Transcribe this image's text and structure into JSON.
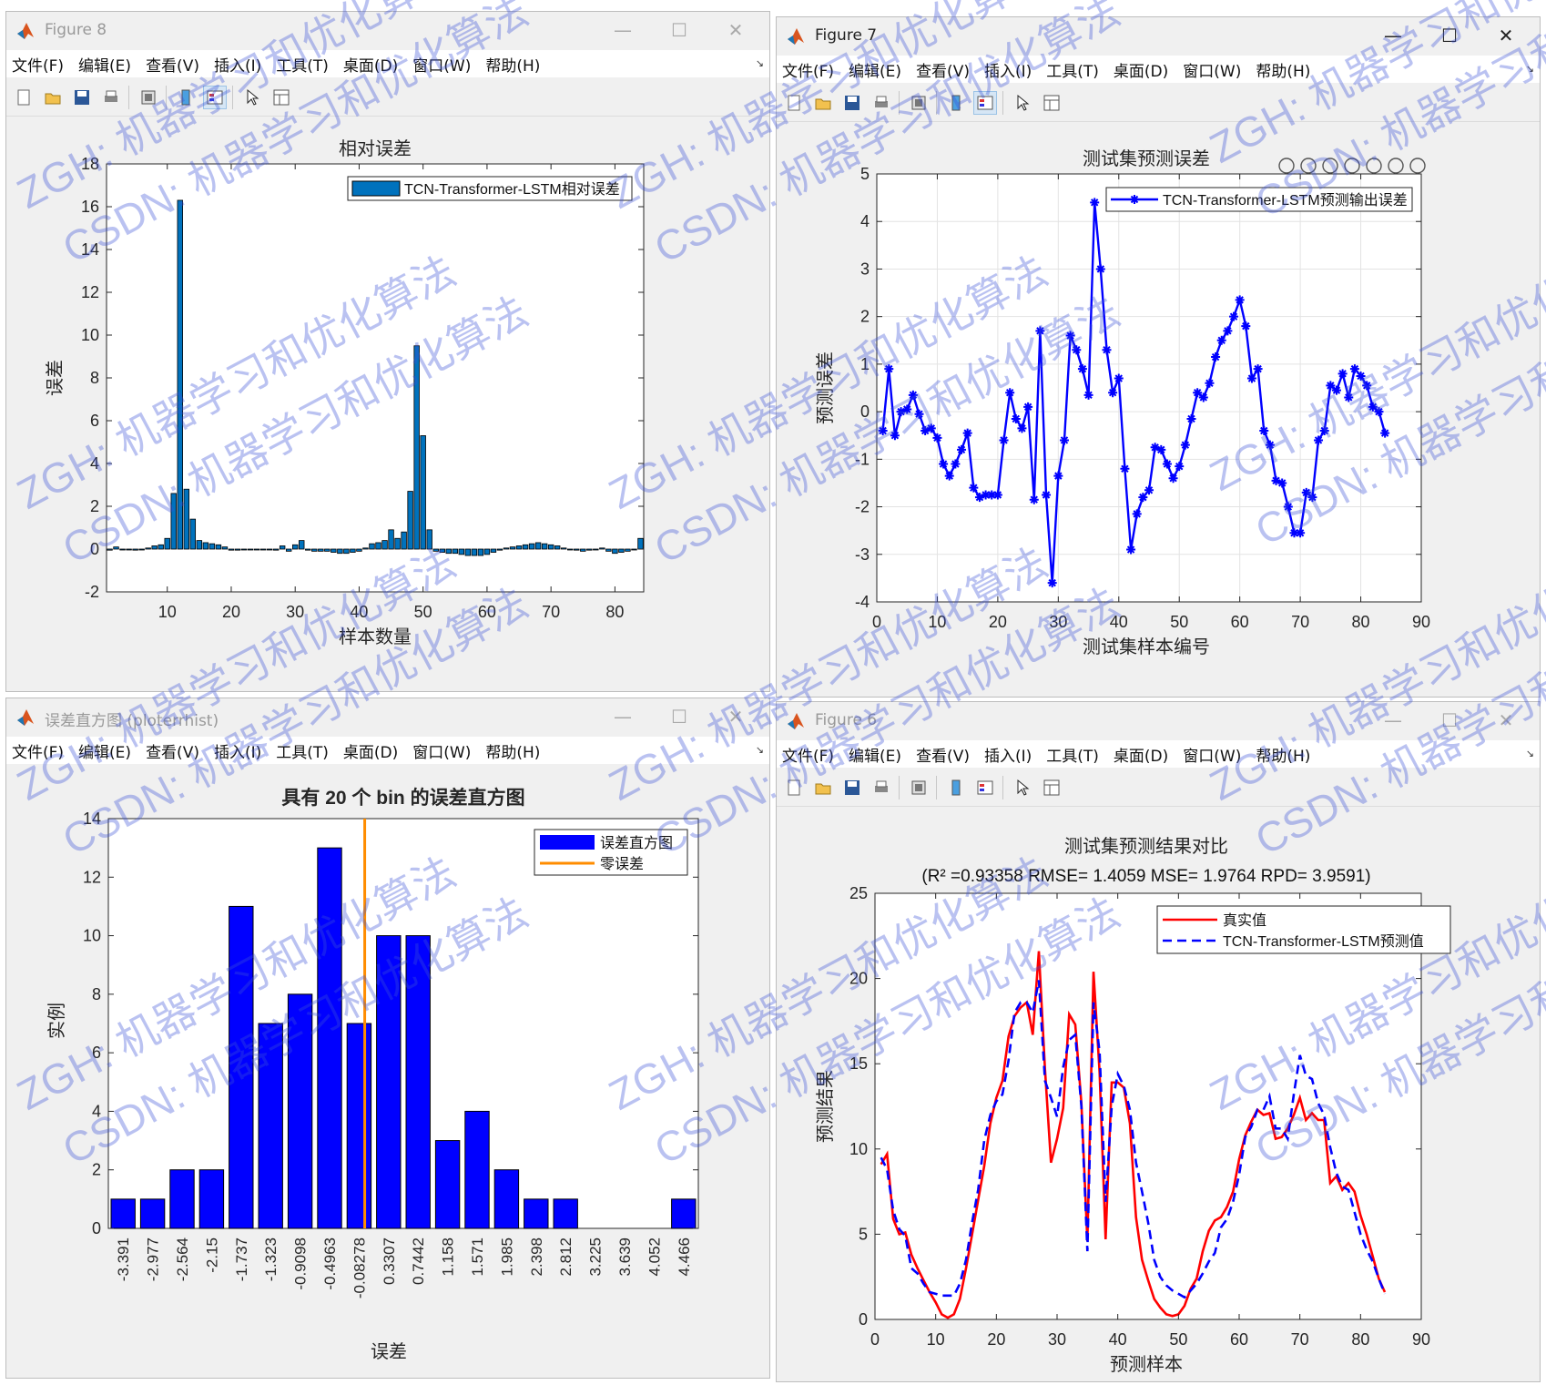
{
  "windows": {
    "fig8": {
      "title": "Figure 8",
      "menus": [
        "文件(F)",
        "编辑(E)",
        "查看(V)",
        "插入(I)",
        "工具(T)",
        "桌面(D)",
        "窗口(W)",
        "帮助(H)"
      ]
    },
    "fig7": {
      "title": "Figure 7",
      "menus": [
        "文件(F)",
        "编辑(E)",
        "查看(V)",
        "插入(I)",
        "工具(T)",
        "桌面(D)",
        "窗口(W)",
        "帮助(H)"
      ]
    },
    "hist": {
      "title": "误差直方图 (ploterrhist)",
      "menus": [
        "文件(F)",
        "编辑(E)",
        "查看(V)",
        "插入(I)",
        "工具(T)",
        "桌面(D)",
        "窗口(W)",
        "帮助(H)"
      ]
    },
    "fig6": {
      "title": "Figure 6",
      "menus": [
        "文件(F)",
        "编辑(E)",
        "查看(V)",
        "插入(I)",
        "工具(T)",
        "桌面(D)",
        "窗口(W)",
        "帮助(H)"
      ]
    }
  },
  "watermark": {
    "line1": "ZGH: 机器学习和优化算法",
    "line2": "CSDN: 机器学习和优化算法"
  },
  "chart_data": [
    {
      "id": "relative-error",
      "type": "bar",
      "title": "相对误差",
      "xlabel": "样本数量",
      "ylabel": "误差",
      "xlim": [
        0.5,
        84.5
      ],
      "ylim": [
        -2,
        18
      ],
      "xticks": [
        10,
        20,
        30,
        40,
        50,
        60,
        70,
        80
      ],
      "yticks": [
        -2,
        0,
        2,
        4,
        6,
        8,
        10,
        12,
        14,
        16,
        18
      ],
      "legend": {
        "position": "top-right",
        "entries": [
          "TCN-Transformer-LSTM相对误差"
        ]
      },
      "series": [
        {
          "name": "TCN-Transformer-LSTM相对误差",
          "color": "#0072bd",
          "x": [
            1,
            2,
            3,
            4,
            5,
            6,
            7,
            8,
            9,
            10,
            11,
            12,
            13,
            14,
            15,
            16,
            17,
            18,
            19,
            20,
            21,
            22,
            23,
            24,
            25,
            26,
            27,
            28,
            29,
            30,
            31,
            32,
            33,
            34,
            35,
            36,
            37,
            38,
            39,
            40,
            41,
            42,
            43,
            44,
            45,
            46,
            47,
            48,
            49,
            50,
            51,
            52,
            53,
            54,
            55,
            56,
            57,
            58,
            59,
            60,
            61,
            62,
            63,
            64,
            65,
            66,
            67,
            68,
            69,
            70,
            71,
            72,
            73,
            74,
            75,
            76,
            77,
            78,
            79,
            80,
            81,
            82,
            83,
            84
          ],
          "values": [
            -0.05,
            0.1,
            -0.02,
            0,
            -0.05,
            0,
            0.05,
            0.15,
            0.2,
            0.5,
            2.6,
            16.3,
            2.8,
            1.4,
            0.4,
            0.3,
            0.25,
            0.2,
            0.1,
            -0.05,
            -0.05,
            0,
            0,
            0,
            0,
            0,
            -0.05,
            0.15,
            -0.1,
            0.2,
            0.4,
            -0.05,
            -0.1,
            -0.1,
            -0.1,
            -0.15,
            -0.2,
            -0.2,
            -0.15,
            -0.1,
            0.05,
            0.25,
            0.3,
            0.4,
            0.9,
            0.5,
            0.8,
            2.7,
            9.5,
            5.3,
            0.9,
            -0.1,
            -0.15,
            -0.2,
            -0.2,
            -0.25,
            -0.3,
            -0.3,
            -0.3,
            -0.25,
            -0.15,
            -0.05,
            0.05,
            0.1,
            0.15,
            0.2,
            0.25,
            0.3,
            0.25,
            0.2,
            0.15,
            0.05,
            0,
            -0.05,
            -0.1,
            -0.05,
            0,
            0.05,
            -0.1,
            -0.2,
            -0.15,
            -0.1,
            0,
            0.5
          ]
        }
      ]
    },
    {
      "id": "test-error",
      "type": "line",
      "title": "测试集预测误差",
      "xlabel": "测试集样本编号",
      "ylabel": "预测误差",
      "xlim": [
        0,
        90
      ],
      "ylim": [
        -4,
        5
      ],
      "xticks": [
        0,
        10,
        20,
        30,
        40,
        50,
        60,
        70,
        80,
        90
      ],
      "yticks": [
        -4,
        -3,
        -2,
        -1,
        0,
        1,
        2,
        3,
        4,
        5
      ],
      "grid": true,
      "legend": {
        "position": "top-right",
        "entries": [
          "TCN-Transformer-LSTM预测输出误差"
        ]
      },
      "series": [
        {
          "name": "TCN-Transformer-LSTM预测输出误差",
          "color": "#0000ff",
          "x": [
            1,
            2,
            3,
            4,
            5,
            6,
            7,
            8,
            9,
            10,
            11,
            12,
            13,
            14,
            15,
            16,
            17,
            18,
            19,
            20,
            21,
            22,
            23,
            24,
            25,
            26,
            27,
            28,
            29,
            30,
            31,
            32,
            33,
            34,
            35,
            36,
            37,
            38,
            39,
            40,
            41,
            42,
            43,
            44,
            45,
            46,
            47,
            48,
            49,
            50,
            51,
            52,
            53,
            54,
            55,
            56,
            57,
            58,
            59,
            60,
            61,
            62,
            63,
            64,
            65,
            66,
            67,
            68,
            69,
            70,
            71,
            72,
            73,
            74,
            75,
            76,
            77,
            78,
            79,
            80,
            81,
            82,
            83,
            84
          ],
          "values": [
            -0.4,
            0.9,
            -0.5,
            0,
            0.05,
            0.35,
            -0.05,
            -0.4,
            -0.35,
            -0.55,
            -1.1,
            -1.35,
            -1.1,
            -0.8,
            -0.45,
            -1.6,
            -1.8,
            -1.75,
            -1.75,
            -1.75,
            -0.6,
            0.4,
            -0.15,
            -0.35,
            0.1,
            -1.85,
            1.7,
            -1.75,
            -3.6,
            -1.35,
            -0.6,
            1.6,
            1.3,
            0.9,
            0.35,
            4.4,
            3.0,
            1.3,
            0.4,
            0.7,
            -1.2,
            -2.9,
            -2.15,
            -1.8,
            -1.65,
            -0.75,
            -0.8,
            -1.1,
            -1.4,
            -1.15,
            -0.7,
            -0.15,
            0.4,
            0.3,
            0.6,
            1.15,
            1.5,
            1.7,
            2.0,
            2.35,
            1.8,
            0.7,
            0.9,
            -0.4,
            -0.7,
            -1.45,
            -1.5,
            -2.0,
            -2.55,
            -2.55,
            -1.7,
            -1.8,
            -0.6,
            -0.4,
            0.55,
            0.45,
            0.8,
            0.3,
            0.9,
            0.75,
            0.55,
            0.1,
            0,
            -0.45
          ]
        }
      ]
    },
    {
      "id": "error-histogram",
      "type": "bar",
      "title": "具有 20 个 bin 的误差直方图",
      "xlabel": "误差",
      "ylabel": "实例",
      "ylim": [
        0,
        14
      ],
      "yticks": [
        0,
        2,
        4,
        6,
        8,
        10,
        12,
        14
      ],
      "legend": {
        "position": "top-right",
        "entries": [
          "误差直方图",
          "零误差"
        ]
      },
      "categories": [
        "-3.391",
        "-2.977",
        "-2.564",
        "-2.15",
        "-1.737",
        "-1.323",
        "-0.9098",
        "-0.4963",
        "-0.08278",
        "0.3307",
        "0.7442",
        "1.158",
        "1.571",
        "1.985",
        "2.398",
        "2.812",
        "3.225",
        "3.639",
        "4.052",
        "4.466"
      ],
      "series": [
        {
          "name": "误差直方图",
          "color": "#0000ff",
          "values": [
            1,
            1,
            2,
            2,
            11,
            7,
            8,
            13,
            7,
            10,
            10,
            3,
            4,
            2,
            1,
            1,
            0,
            0,
            0,
            1
          ]
        },
        {
          "name": "零误差",
          "color": "#ff8c00",
          "x": 0
        }
      ]
    },
    {
      "id": "prediction-compare",
      "type": "line",
      "title": "测试集预测结果对比",
      "subtitle": "(R² =0.93358 RMSE= 1.4059 MSE= 1.9764 RPD= 3.9591)",
      "xlabel": "预测样本",
      "ylabel": "预测结果",
      "xlim": [
        0,
        90
      ],
      "ylim": [
        0,
        25
      ],
      "xticks": [
        0,
        10,
        20,
        30,
        40,
        50,
        60,
        70,
        80,
        90
      ],
      "yticks": [
        0,
        5,
        10,
        15,
        20,
        25
      ],
      "legend": {
        "position": "top-right",
        "entries": [
          "真实值",
          "TCN-Transformer-LSTM预测值"
        ]
      },
      "x": [
        1,
        2,
        3,
        4,
        5,
        6,
        7,
        8,
        9,
        10,
        11,
        12,
        13,
        14,
        15,
        16,
        17,
        18,
        19,
        20,
        21,
        22,
        23,
        24,
        25,
        26,
        27,
        28,
        29,
        30,
        31,
        32,
        33,
        34,
        35,
        36,
        37,
        38,
        39,
        40,
        41,
        42,
        43,
        44,
        45,
        46,
        47,
        48,
        49,
        50,
        51,
        52,
        53,
        54,
        55,
        56,
        57,
        58,
        59,
        60,
        61,
        62,
        63,
        64,
        65,
        66,
        67,
        68,
        69,
        70,
        71,
        72,
        73,
        74,
        75,
        76,
        77,
        78,
        79,
        80,
        81,
        82,
        83,
        84
      ],
      "series": [
        {
          "name": "真实值",
          "color": "#ff0000",
          "style": "solid",
          "values": [
            9.1,
            9.7,
            5.9,
            5.0,
            5.1,
            3.8,
            3.0,
            2.3,
            1.6,
            1.0,
            0.3,
            0.1,
            0.3,
            1.2,
            3.0,
            5.0,
            7.0,
            9.0,
            11.5,
            13.0,
            14.0,
            16.6,
            17.8,
            18.3,
            18.6,
            16.7,
            21.6,
            14.7,
            9.2,
            10.6,
            12.4,
            17.9,
            17.3,
            12.7,
            4.6,
            20.4,
            14.5,
            4.7,
            13.9,
            13.9,
            13.6,
            11.5,
            6.0,
            3.5,
            2.3,
            1.2,
            0.7,
            0.3,
            0.2,
            0.3,
            0.8,
            1.8,
            2.4,
            4.0,
            5.2,
            5.8,
            6.0,
            6.6,
            7.5,
            9.4,
            10.8,
            11.6,
            12.3,
            12.0,
            12.1,
            10.6,
            10.7,
            11.2,
            12.0,
            13.0,
            11.7,
            12.1,
            11.7,
            11.7,
            8.0,
            8.4,
            7.6,
            8.0,
            7.5,
            6.1,
            5.0,
            3.7,
            2.4,
            1.6
          ]
        },
        {
          "name": "TCN-Transformer-LSTM预测值",
          "color": "#0000ff",
          "style": "dashed",
          "values": [
            9.5,
            8.8,
            6.4,
            5.3,
            4.9,
            3.0,
            2.7,
            2.1,
            1.6,
            1.5,
            1.4,
            1.4,
            1.4,
            2.1,
            3.5,
            5.7,
            7.6,
            10.5,
            12.0,
            12.8,
            13.2,
            15.2,
            18.0,
            18.6,
            18.6,
            18.0,
            19.9,
            14.0,
            13.0,
            11.9,
            14.8,
            16.4,
            16.7,
            12.5,
            4.0,
            18.6,
            15.7,
            6.9,
            12.5,
            14.4,
            13.7,
            12.3,
            9.2,
            7.5,
            5.7,
            3.5,
            2.5,
            2.0,
            1.7,
            1.5,
            1.3,
            1.7,
            2.1,
            2.7,
            3.4,
            3.9,
            5.4,
            5.9,
            6.9,
            8.5,
            10.7,
            11.3,
            12.3,
            12.3,
            13.1,
            11.2,
            11.2,
            10.6,
            13.2,
            15.5,
            14.3,
            14.1,
            12.7,
            12.0,
            10.1,
            8.6,
            7.8,
            7.6,
            6.3,
            5.0,
            4.1,
            3.4,
            2.4,
            1.5
          ]
        }
      ]
    }
  ]
}
